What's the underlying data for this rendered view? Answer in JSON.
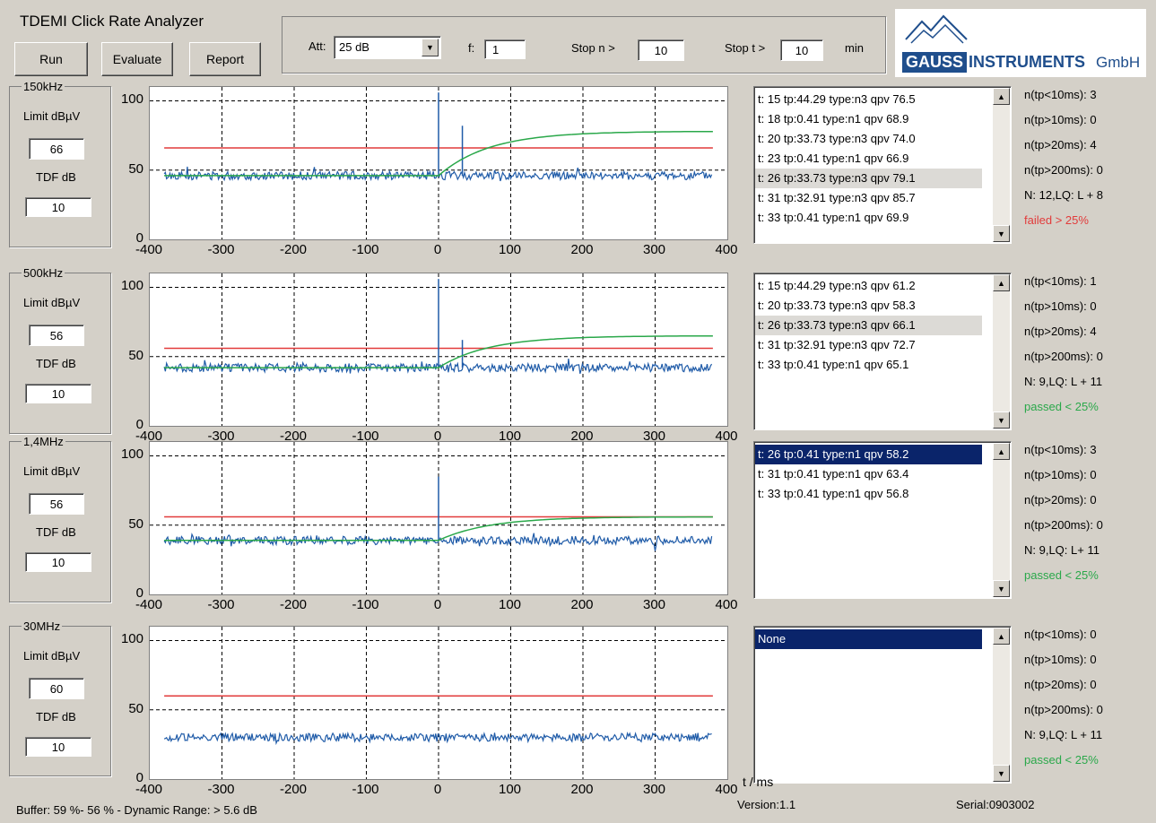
{
  "app": {
    "title": "TDEMI Click Rate Analyzer"
  },
  "toolbar": {
    "run_label": "Run",
    "evaluate_label": "Evaluate",
    "report_label": "Report",
    "att_label": "Att:",
    "att_value": "25 dB",
    "f_label": "f:",
    "f_value": "1",
    "stop_n_label": "Stop n >",
    "stop_n_value": "10",
    "stop_t_label": "Stop t >",
    "stop_t_value": "10",
    "stop_t_unit": "min"
  },
  "logo": {
    "brand": "GAUSS",
    "text": "INSTRUMENTS",
    "suffix": "GmbH",
    "color": "#1f4e8c"
  },
  "colors": {
    "limit_line": "#e23b3b",
    "signal": "#1f5ba8",
    "qp": "#2aa84a",
    "failed": "#e23b3b",
    "passed": "#2aa84a"
  },
  "panels": [
    {
      "band": "150kHz",
      "limit_label": "Limit dBµV",
      "limit": "66",
      "tdf_label": "TDF dB",
      "tdf": "10",
      "items": [
        "t:  15 tp:44.29 type:n3 qpv 76.5",
        "t:  18 tp:0.41 type:n1 qpv 68.9",
        "t:  20 tp:33.73 type:n3 qpv 74.0",
        "t:  23 tp:0.41 type:n1 qpv 66.9",
        "t:  26 tp:33.73 type:n3 qpv 79.1",
        "t:  31 tp:32.91 type:n3 qpv 85.7",
        "t:  33 tp:0.41 type:n1 qpv 69.9"
      ],
      "highlight": 4,
      "selected": -1,
      "stats": {
        "lt10": "n(tp<10ms):   3",
        "gt10": "n(tp>10ms):   0",
        "gt20": "n(tp>20ms):   4",
        "gt200": "n(tp>200ms):   0",
        "n": "N:  12,LQ: L +   8",
        "result": "failed > 25%",
        "result_color": "#e23b3b"
      },
      "chart": {
        "limit": 66,
        "baseline": 46,
        "qp_end": 78,
        "spikes": [
          [
            0,
            106
          ],
          [
            33,
            82
          ]
        ]
      }
    },
    {
      "band": "500kHz",
      "limit_label": "Limit dBµV",
      "limit": "56",
      "tdf_label": "TDF dB",
      "tdf": "10",
      "items": [
        "t:  15 tp:44.29 type:n3 qpv 61.2",
        "t:  20 tp:33.73 type:n3 qpv 58.3",
        "t:  26 tp:33.73 type:n3 qpv 66.1",
        "t:  31 tp:32.91 type:n3 qpv 72.7",
        "t:  33 tp:0.41 type:n1 qpv 65.1"
      ],
      "highlight": 2,
      "selected": -1,
      "stats": {
        "lt10": "n(tp<10ms):   1",
        "gt10": "n(tp>10ms):   0",
        "gt20": "n(tp>20ms):   4",
        "gt200": "n(tp>200ms):   0",
        "n": "N:   9,LQ: L +  11",
        "result": "passed < 25%",
        "result_color": "#2aa84a"
      },
      "chart": {
        "limit": 56,
        "baseline": 42,
        "qp_end": 65,
        "spikes": [
          [
            0,
            106
          ],
          [
            33,
            62
          ]
        ]
      }
    },
    {
      "band": "1,4MHz",
      "limit_label": "Limit dBµV",
      "limit": "56",
      "tdf_label": "TDF dB",
      "tdf": "10",
      "items": [
        "t:  26 tp:0.41 type:n1 qpv 58.2",
        "t:  31 tp:0.41 type:n1 qpv 63.4",
        "t:  33 tp:0.41 type:n1 qpv 56.8"
      ],
      "highlight": -1,
      "selected": 0,
      "stats": {
        "lt10": "n(tp<10ms):   3",
        "gt10": "n(tp>10ms):   0",
        "gt20": "n(tp>20ms):   0",
        "gt200": "n(tp>200ms):   0",
        "n": "N:   9,LQ: L+  11",
        "result": "passed < 25%",
        "result_color": "#2aa84a"
      },
      "chart": {
        "limit": 56,
        "baseline": 39,
        "qp_end": 56,
        "spikes": [
          [
            0,
            85
          ]
        ]
      }
    },
    {
      "band": "30MHz",
      "limit_label": "Limit dBµV",
      "limit": "60",
      "tdf_label": "TDF dB",
      "tdf": "10",
      "items": [
        "None"
      ],
      "highlight": -1,
      "selected": 0,
      "stats": {
        "lt10": "n(tp<10ms):   0",
        "gt10": "n(tp>10ms):   0",
        "gt20": "n(tp>20ms):   0",
        "gt200": "n(tp>200ms):   0",
        "n": "N:   9,LQ: L +  11",
        "result": "passed < 25%",
        "result_color": "#2aa84a"
      },
      "chart": {
        "limit": 60,
        "baseline": 30,
        "qp_end": null,
        "spikes": []
      }
    }
  ],
  "axis": {
    "x_ticks": [
      "-400",
      "-300",
      "-200",
      "-100",
      "0",
      "100",
      "200",
      "300",
      "400"
    ],
    "y_ticks": [
      "100",
      "50",
      "0"
    ],
    "x_unit": "t / ms",
    "xlim": [
      -400,
      400
    ],
    "ylim": [
      0,
      110
    ]
  },
  "status": {
    "buffer": "Buffer: 59 %- 56 % - Dynamic Range: > 5.6 dB",
    "version": "Version:1.1",
    "serial": "Serial:0903002"
  }
}
